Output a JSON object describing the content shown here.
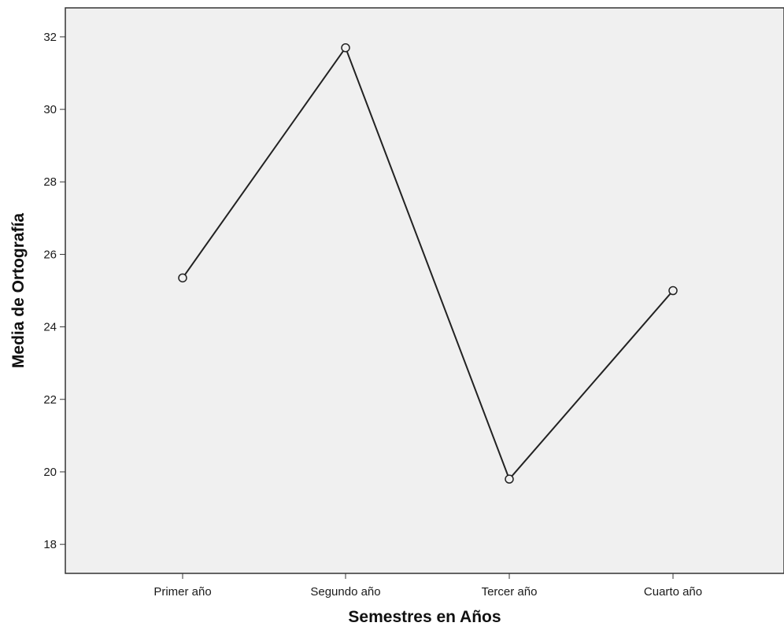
{
  "chart_data": {
    "type": "line",
    "title": "",
    "xlabel": "Semestres en Años",
    "ylabel": "Media de Ortografía",
    "categories": [
      "Primer año",
      "Segundo año",
      "Tercer año",
      "Cuarto año"
    ],
    "series": [
      {
        "values": [
          25.35,
          31.7,
          19.8,
          25.0
        ]
      }
    ],
    "ylim": [
      17.2,
      32.8
    ],
    "yticks": [
      18,
      20,
      22,
      24,
      26,
      28,
      30,
      32
    ],
    "grid": false,
    "legend": "none",
    "colors": {
      "plot_background": "#f0f0f0",
      "line": "#222222",
      "marker": "#222222",
      "axis": "#333333"
    },
    "marker": "open-circle"
  }
}
